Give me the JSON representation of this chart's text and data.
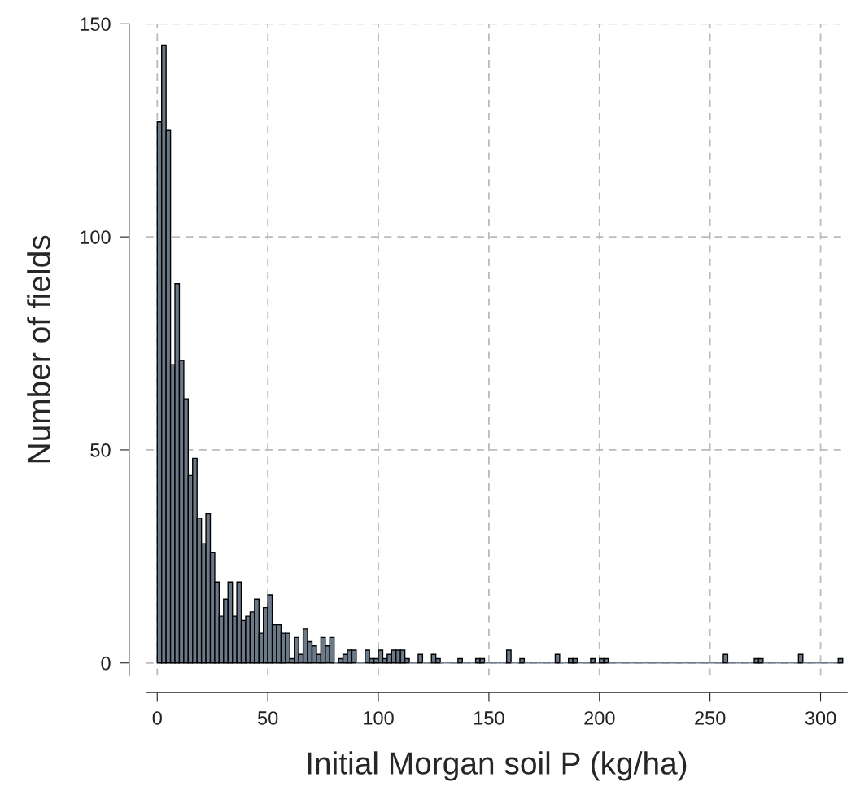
{
  "chart_data": {
    "type": "histogram",
    "xlabel": "Initial Morgan soil P (kg/ha)",
    "ylabel": "Number of fields",
    "bins": [
      0,
      2,
      4,
      6,
      8,
      10,
      12,
      14,
      16,
      18,
      20,
      22,
      24,
      26,
      28,
      30,
      32,
      34,
      36,
      38,
      40,
      42,
      44,
      46,
      48,
      50,
      52,
      54,
      56,
      58,
      60,
      62,
      64,
      66,
      68,
      70,
      72,
      74,
      76,
      78,
      80,
      82,
      84,
      86,
      88,
      90,
      92,
      94,
      96,
      98,
      100,
      102,
      104,
      106,
      108,
      110,
      112,
      114,
      116,
      118,
      120,
      122,
      124,
      126,
      128,
      130,
      132,
      134,
      136,
      138,
      140,
      142,
      144,
      146,
      148,
      150,
      152,
      154,
      156,
      158,
      160,
      162,
      164,
      166,
      168,
      170,
      172,
      174,
      176,
      178,
      180,
      182,
      184,
      186,
      188,
      190,
      192,
      194,
      196,
      198,
      200,
      202,
      204,
      206,
      208,
      210,
      212,
      214,
      216,
      218,
      220,
      222,
      224,
      226,
      228,
      230,
      232,
      234,
      236,
      238,
      240,
      242,
      244,
      246,
      248,
      250,
      252,
      254,
      256,
      258,
      260,
      262,
      264,
      266,
      268,
      270,
      272,
      274,
      276,
      278,
      280,
      282,
      284,
      286,
      288,
      290,
      292,
      294,
      296,
      298,
      300,
      302,
      304,
      306,
      308,
      310
    ],
    "values": [
      127,
      145,
      125,
      70,
      89,
      71,
      62,
      44,
      48,
      34,
      28,
      35,
      26,
      19,
      11,
      15,
      19,
      11,
      19,
      10,
      11,
      12,
      15,
      7,
      13,
      16,
      9,
      9,
      7,
      7,
      1,
      6,
      2,
      8,
      5,
      4,
      2,
      6,
      4,
      6,
      0,
      1,
      2,
      3,
      3,
      0,
      0,
      3,
      1,
      1,
      3,
      1,
      2,
      3,
      3,
      3,
      1,
      0,
      0,
      2,
      0,
      0,
      2,
      1,
      0,
      0,
      0,
      0,
      1,
      0,
      0,
      0,
      1,
      1,
      0,
      0,
      0,
      0,
      0,
      3,
      0,
      0,
      1,
      0,
      0,
      0,
      0,
      0,
      0,
      0,
      2,
      0,
      0,
      1,
      1,
      0,
      0,
      0,
      1,
      0,
      1,
      1,
      0,
      0,
      0,
      0,
      0,
      0,
      0,
      0,
      0,
      0,
      0,
      0,
      0,
      0,
      0,
      0,
      0,
      0,
      0,
      0,
      0,
      0,
      0,
      0,
      0,
      0,
      2,
      0,
      0,
      0,
      0,
      0,
      0,
      1,
      1,
      0,
      0,
      0,
      0,
      0,
      0,
      0,
      0,
      2,
      0,
      0,
      0,
      0,
      0,
      0,
      0,
      0,
      1
    ],
    "color": "#6b7988",
    "xlim": [
      -5,
      312
    ],
    "ylim": [
      -3,
      150
    ],
    "xticks": [
      0,
      50,
      100,
      150,
      200,
      250,
      300
    ],
    "yticks": [
      0,
      50,
      100,
      150
    ],
    "grid": true
  }
}
